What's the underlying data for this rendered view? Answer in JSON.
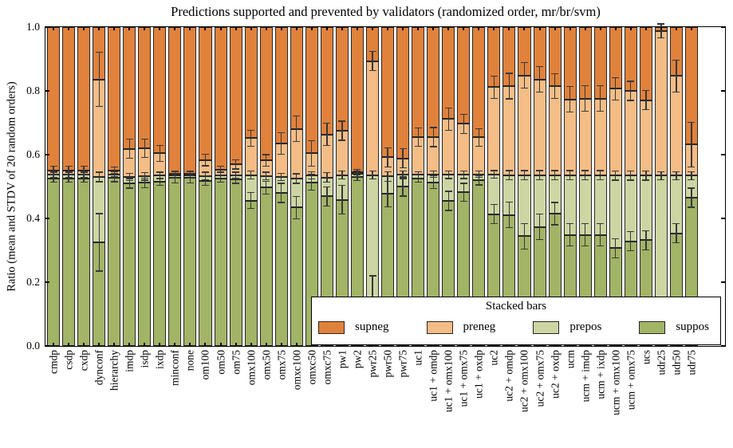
{
  "figure": {
    "title": "Predictions supported and prevented by validators (randomized order, mr/br/svm)",
    "ylabel": "Ratio (mean and STDV of 20 random orders)"
  },
  "chart_data": {
    "type": "bar",
    "subtype": "stacked_bar_with_error_bars",
    "title": "Predictions supported and prevented by validators (randomized order, mr/br/svm)",
    "xlabel": "",
    "ylabel": "Ratio (mean and STDV of 20 random orders)",
    "ylim": [
      0.0,
      1.0
    ],
    "ytick_values": [
      0.0,
      0.2,
      0.4,
      0.6,
      0.8,
      1.0
    ],
    "ytick_labels": [
      "0.0",
      "0.2",
      "0.4",
      "0.6",
      "0.8",
      "1.0"
    ],
    "grid": false,
    "tick_direction": "in",
    "legend": {
      "title": "Stacked bars",
      "position": "lower-right-inside",
      "entries": [
        {
          "label": "supneg",
          "color": "#e0823c"
        },
        {
          "label": "preneg",
          "color": "#f5bd86"
        },
        {
          "label": "prepos",
          "color": "#cdd6a3"
        },
        {
          "label": "suppos",
          "color": "#a2b466"
        }
      ]
    },
    "colors": {
      "supneg": "#e0823c",
      "preneg": "#f5bd86",
      "prepos": "#cdd6a3",
      "suppos": "#a2b466",
      "bar_edge": "#262626",
      "error_bar": "#383838"
    },
    "stack_order_bottom_to_top": [
      "suppos",
      "prepos",
      "preneg",
      "supneg"
    ],
    "note": "values are cumulative stack boundaries (tops) of each segment; supneg always tops out at 1.0; std values are error-bar half-lengths at each boundary",
    "categories": [
      "cmdp",
      "csdp",
      "cxdp",
      "dynconf",
      "hierarchy",
      "imdp",
      "isdp",
      "ixdp",
      "minconf",
      "none",
      "om100",
      "om50",
      "om75",
      "omx100",
      "omx50",
      "omx75",
      "omxc100",
      "omxc50",
      "omxc75",
      "pw1",
      "pw2",
      "pwr25",
      "pwr50",
      "pwr75",
      "uc1",
      "uc1 + omdp",
      "uc1 + omx100",
      "uc1 + omx75",
      "uc1 + oxdp",
      "uc2",
      "uc2 + omdp",
      "uc2 + omx100",
      "uc2 + omx75",
      "uc2 + oxdp",
      "ucm",
      "ucm + imdp",
      "ucm + ixdp",
      "ucm + omx100",
      "ucm + omx75",
      "ucs",
      "udr25",
      "udr50",
      "udr75"
    ],
    "bars": [
      {
        "label": "cmdp",
        "suppos_top": 0.525,
        "prepos_top": 0.537,
        "preneg_top": 0.551,
        "supneg_top": 1.0,
        "std_suppos": 0.012,
        "std_prepos": 0.008,
        "std_preneg": 0.012
      },
      {
        "label": "csdp",
        "suppos_top": 0.525,
        "prepos_top": 0.537,
        "preneg_top": 0.551,
        "supneg_top": 1.0,
        "std_suppos": 0.012,
        "std_prepos": 0.008,
        "std_preneg": 0.012
      },
      {
        "label": "cxdp",
        "suppos_top": 0.525,
        "prepos_top": 0.537,
        "preneg_top": 0.551,
        "supneg_top": 1.0,
        "std_suppos": 0.012,
        "std_prepos": 0.008,
        "std_preneg": 0.012
      },
      {
        "label": "dynconf",
        "suppos_top": 0.325,
        "prepos_top": 0.53,
        "preneg_top": 0.836,
        "supneg_top": 1.0,
        "std_suppos": 0.09,
        "std_prepos": 0.015,
        "std_preneg": 0.085
      },
      {
        "label": "hierarchy",
        "suppos_top": 0.527,
        "prepos_top": 0.538,
        "preneg_top": 0.551,
        "supneg_top": 1.0,
        "std_suppos": 0.012,
        "std_prepos": 0.008,
        "std_preneg": 0.01
      },
      {
        "label": "imdp",
        "suppos_top": 0.51,
        "prepos_top": 0.53,
        "preneg_top": 0.618,
        "supneg_top": 1.0,
        "std_suppos": 0.015,
        "std_prepos": 0.012,
        "std_preneg": 0.03
      },
      {
        "label": "isdp",
        "suppos_top": 0.512,
        "prepos_top": 0.532,
        "preneg_top": 0.62,
        "supneg_top": 1.0,
        "std_suppos": 0.015,
        "std_prepos": 0.012,
        "std_preneg": 0.028
      },
      {
        "label": "ixdp",
        "suppos_top": 0.515,
        "prepos_top": 0.535,
        "preneg_top": 0.604,
        "supneg_top": 1.0,
        "std_suppos": 0.012,
        "std_prepos": 0.01,
        "std_preneg": 0.025
      },
      {
        "label": "minconf",
        "suppos_top": 0.527,
        "prepos_top": 0.536,
        "preneg_top": 0.541,
        "supneg_top": 1.0,
        "std_suppos": 0.015,
        "std_prepos": 0.01,
        "std_preneg": 0.008
      },
      {
        "label": "none",
        "suppos_top": 0.527,
        "prepos_top": 0.536,
        "preneg_top": 0.541,
        "supneg_top": 1.0,
        "std_suppos": 0.015,
        "std_prepos": 0.01,
        "std_preneg": 0.008
      },
      {
        "label": "om100",
        "suppos_top": 0.518,
        "prepos_top": 0.533,
        "preneg_top": 0.583,
        "supneg_top": 1.0,
        "std_suppos": 0.015,
        "std_prepos": 0.012,
        "std_preneg": 0.018
      },
      {
        "label": "om50",
        "suppos_top": 0.525,
        "prepos_top": 0.536,
        "preneg_top": 0.553,
        "supneg_top": 1.0,
        "std_suppos": 0.012,
        "std_prepos": 0.01,
        "std_preneg": 0.01
      },
      {
        "label": "om75",
        "suppos_top": 0.522,
        "prepos_top": 0.535,
        "preneg_top": 0.569,
        "supneg_top": 1.0,
        "std_suppos": 0.012,
        "std_prepos": 0.01,
        "std_preneg": 0.014
      },
      {
        "label": "omx100",
        "suppos_top": 0.456,
        "prepos_top": 0.536,
        "preneg_top": 0.652,
        "supneg_top": 1.0,
        "std_suppos": 0.025,
        "std_prepos": 0.012,
        "std_preneg": 0.025
      },
      {
        "label": "omx50",
        "suppos_top": 0.497,
        "prepos_top": 0.533,
        "preneg_top": 0.582,
        "supneg_top": 1.0,
        "std_suppos": 0.02,
        "std_prepos": 0.012,
        "std_preneg": 0.018
      },
      {
        "label": "omx75",
        "suppos_top": 0.48,
        "prepos_top": 0.53,
        "preneg_top": 0.635,
        "supneg_top": 1.0,
        "std_suppos": 0.03,
        "std_prepos": 0.012,
        "std_preneg": 0.033
      },
      {
        "label": "omxc100",
        "suppos_top": 0.434,
        "prepos_top": 0.525,
        "preneg_top": 0.681,
        "supneg_top": 1.0,
        "std_suppos": 0.035,
        "std_prepos": 0.015,
        "std_preneg": 0.04
      },
      {
        "label": "omxc50",
        "suppos_top": 0.513,
        "prepos_top": 0.535,
        "preneg_top": 0.604,
        "supneg_top": 1.0,
        "std_suppos": 0.025,
        "std_prepos": 0.012,
        "std_preneg": 0.04
      },
      {
        "label": "omxc75",
        "suppos_top": 0.469,
        "prepos_top": 0.528,
        "preneg_top": 0.663,
        "supneg_top": 1.0,
        "std_suppos": 0.03,
        "std_prepos": 0.015,
        "std_preneg": 0.035
      },
      {
        "label": "pw1",
        "suppos_top": 0.458,
        "prepos_top": 0.536,
        "preneg_top": 0.675,
        "supneg_top": 1.0,
        "std_suppos": 0.045,
        "std_prepos": 0.012,
        "std_preneg": 0.03
      },
      {
        "label": "pw2",
        "suppos_top": 0.53,
        "prepos_top": 0.54,
        "preneg_top": 0.545,
        "supneg_top": 1.0,
        "std_suppos": 0.012,
        "std_prepos": 0.008,
        "std_preneg": 0.008
      },
      {
        "label": "pwr25",
        "suppos_top": 0.15,
        "prepos_top": 0.536,
        "preneg_top": 0.893,
        "supneg_top": 1.0,
        "std_suppos": 0.07,
        "std_prepos": 0.012,
        "std_preneg": 0.03
      },
      {
        "label": "pwr50",
        "suppos_top": 0.477,
        "prepos_top": 0.532,
        "preneg_top": 0.592,
        "supneg_top": 1.0,
        "std_suppos": 0.04,
        "std_prepos": 0.015,
        "std_preneg": 0.03
      },
      {
        "label": "pwr75",
        "suppos_top": 0.5,
        "prepos_top": 0.537,
        "preneg_top": 0.588,
        "supneg_top": 1.0,
        "std_suppos": 0.03,
        "std_prepos": 0.012,
        "std_preneg": 0.03
      },
      {
        "label": "uc1",
        "suppos_top": 0.525,
        "prepos_top": 0.537,
        "preneg_top": 0.655,
        "supneg_top": 1.0,
        "std_suppos": 0.012,
        "std_prepos": 0.01,
        "std_preneg": 0.028
      },
      {
        "label": "uc1 + omdp",
        "suppos_top": 0.513,
        "prepos_top": 0.538,
        "preneg_top": 0.655,
        "supneg_top": 1.0,
        "std_suppos": 0.02,
        "std_prepos": 0.01,
        "std_preneg": 0.03
      },
      {
        "label": "uc1 + omx100",
        "suppos_top": 0.455,
        "prepos_top": 0.537,
        "preneg_top": 0.712,
        "supneg_top": 1.0,
        "std_suppos": 0.03,
        "std_prepos": 0.012,
        "std_preneg": 0.035
      },
      {
        "label": "uc1 + omx75",
        "suppos_top": 0.482,
        "prepos_top": 0.537,
        "preneg_top": 0.697,
        "supneg_top": 1.0,
        "std_suppos": 0.028,
        "std_prepos": 0.012,
        "std_preneg": 0.03
      },
      {
        "label": "uc1 + oxdp",
        "suppos_top": 0.52,
        "prepos_top": 0.538,
        "preneg_top": 0.654,
        "supneg_top": 1.0,
        "std_suppos": 0.015,
        "std_prepos": 0.01,
        "std_preneg": 0.028
      },
      {
        "label": "uc2",
        "suppos_top": 0.413,
        "prepos_top": 0.538,
        "preneg_top": 0.812,
        "supneg_top": 1.0,
        "std_suppos": 0.03,
        "std_prepos": 0.012,
        "std_preneg": 0.035
      },
      {
        "label": "uc2 + omdp",
        "suppos_top": 0.411,
        "prepos_top": 0.536,
        "preneg_top": 0.815,
        "supneg_top": 1.0,
        "std_suppos": 0.04,
        "std_prepos": 0.014,
        "std_preneg": 0.04
      },
      {
        "label": "uc2 + omx100",
        "suppos_top": 0.344,
        "prepos_top": 0.536,
        "preneg_top": 0.848,
        "supneg_top": 1.0,
        "std_suppos": 0.04,
        "std_prepos": 0.014,
        "std_preneg": 0.04
      },
      {
        "label": "uc2 + omx75",
        "suppos_top": 0.373,
        "prepos_top": 0.536,
        "preneg_top": 0.836,
        "supneg_top": 1.0,
        "std_suppos": 0.04,
        "std_prepos": 0.014,
        "std_preneg": 0.04
      },
      {
        "label": "uc2 + oxdp",
        "suppos_top": 0.415,
        "prepos_top": 0.536,
        "preneg_top": 0.815,
        "supneg_top": 1.0,
        "std_suppos": 0.035,
        "std_prepos": 0.014,
        "std_preneg": 0.038
      },
      {
        "label": "ucm",
        "suppos_top": 0.348,
        "prepos_top": 0.536,
        "preneg_top": 0.773,
        "supneg_top": 1.0,
        "std_suppos": 0.035,
        "std_prepos": 0.014,
        "std_preneg": 0.04
      },
      {
        "label": "ucm + imdp",
        "suppos_top": 0.348,
        "prepos_top": 0.536,
        "preneg_top": 0.776,
        "supneg_top": 1.0,
        "std_suppos": 0.035,
        "std_prepos": 0.014,
        "std_preneg": 0.04
      },
      {
        "label": "ucm + ixdp",
        "suppos_top": 0.348,
        "prepos_top": 0.536,
        "preneg_top": 0.776,
        "supneg_top": 1.0,
        "std_suppos": 0.035,
        "std_prepos": 0.014,
        "std_preneg": 0.04
      },
      {
        "label": "ucm + omx100",
        "suppos_top": 0.307,
        "prepos_top": 0.534,
        "preneg_top": 0.807,
        "supneg_top": 1.0,
        "std_suppos": 0.03,
        "std_prepos": 0.014,
        "std_preneg": 0.035
      },
      {
        "label": "ucm + omx75",
        "suppos_top": 0.328,
        "prepos_top": 0.534,
        "preneg_top": 0.8,
        "supneg_top": 1.0,
        "std_suppos": 0.03,
        "std_prepos": 0.014,
        "std_preneg": 0.03
      },
      {
        "label": "ucs",
        "suppos_top": 0.332,
        "prepos_top": 0.534,
        "preneg_top": 0.771,
        "supneg_top": 1.0,
        "std_suppos": 0.03,
        "std_prepos": 0.014,
        "std_preneg": 0.03
      },
      {
        "label": "udr25",
        "suppos_top": 0.1,
        "prepos_top": 0.534,
        "preneg_top": 0.988,
        "supneg_top": 1.0,
        "std_suppos": 0.04,
        "std_prepos": 0.012,
        "std_preneg": 0.022
      },
      {
        "label": "udr50",
        "suppos_top": 0.353,
        "prepos_top": 0.534,
        "preneg_top": 0.847,
        "supneg_top": 1.0,
        "std_suppos": 0.03,
        "std_prepos": 0.012,
        "std_preneg": 0.05
      },
      {
        "label": "udr75",
        "suppos_top": 0.465,
        "prepos_top": 0.534,
        "preneg_top": 0.632,
        "supneg_top": 1.0,
        "std_suppos": 0.03,
        "std_prepos": 0.012,
        "std_preneg": 0.07
      }
    ]
  }
}
